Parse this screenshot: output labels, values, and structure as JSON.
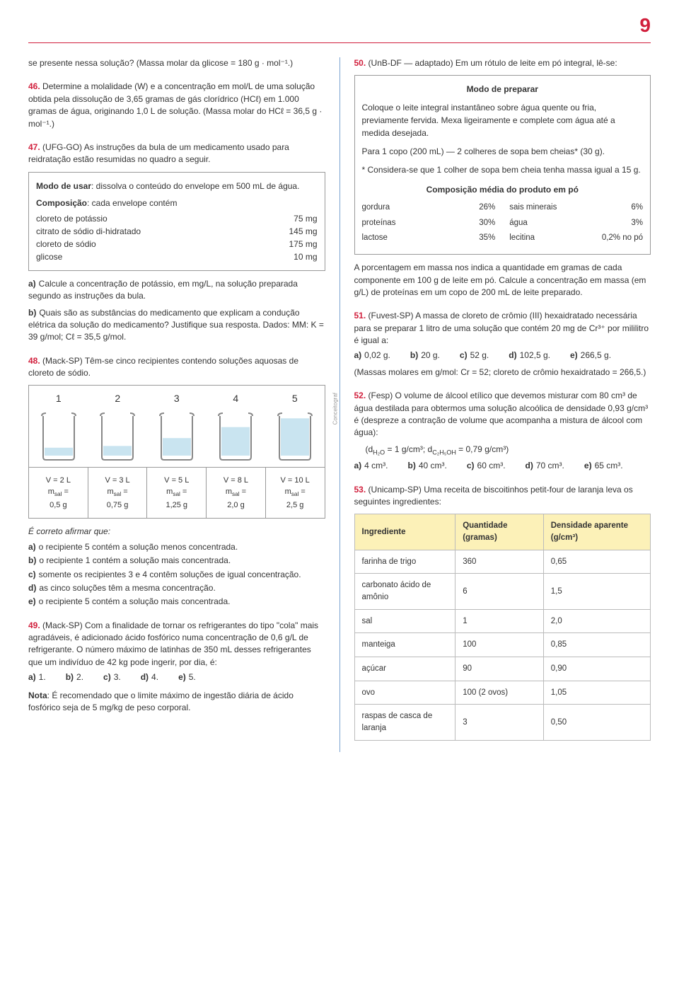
{
  "page_number": "9",
  "left": {
    "q_intro": "se presente nessa solução? (Massa molar da glicose = 180 g · mol⁻¹.)",
    "q46": {
      "num": "46.",
      "text": "Determine a molalidade (W) e a concentração em mol/L de uma solução obtida pela dissolução de 3,65 gramas de gás clorídrico (HCℓ) em 1.000 gramas de água, originando 1,0 L de solução. (Massa molar do HCℓ = 36,5 g · mol⁻¹.)"
    },
    "q47": {
      "num": "47.",
      "text": "(UFG-GO) As instruções da bula de um medicamento usado para reidratação estão resumidas no quadro a seguir.",
      "box_modo_label": "Modo de usar",
      "box_modo": ": dissolva o conteúdo do envelope em 500 mL de água.",
      "box_comp_label": "Composição",
      "box_comp": ": cada envelope contém",
      "rows": [
        {
          "n": "cloreto de potássio",
          "v": "75 mg"
        },
        {
          "n": "citrato de sódio di-hidratado",
          "v": "145 mg"
        },
        {
          "n": "cloreto de sódio",
          "v": "175 mg"
        },
        {
          "n": "glicose",
          "v": "10 mg"
        }
      ],
      "a_label": "a)",
      "a": "Calcule a concentração de potássio, em mg/L, na solução preparada segundo as instruções da bula.",
      "b_label": "b)",
      "b": "Quais são as substâncias do medicamento que explicam a condução elétrica da solução do medicamento? Justifique sua resposta. Dados: MM: K = 39 g/mol; Cℓ = 35,5 g/mol."
    },
    "q48": {
      "num": "48.",
      "text": "(Mack-SP) Têm-se cinco recipientes contendo soluções aquosas de cloreto de sódio.",
      "credit": "Conceitograf",
      "nums": [
        "1",
        "2",
        "3",
        "4",
        "5"
      ],
      "beakers": [
        {
          "fill": 0.18,
          "v": "V = 2 L",
          "m": "mₛₐₗ = 0,5 g"
        },
        {
          "fill": 0.22,
          "v": "V = 3 L",
          "m": "mₛₐₗ = 0,75 g"
        },
        {
          "fill": 0.4,
          "v": "V = 5 L",
          "m": "mₛₐₗ = 1,25 g"
        },
        {
          "fill": 0.65,
          "v": "V = 8 L",
          "m": "mₛₐₗ = 2,0 g"
        },
        {
          "fill": 0.85,
          "v": "V = 10 L",
          "m": "mₛₐₗ = 2,5 g"
        }
      ],
      "stem": "É correto afirmar que:",
      "opts": [
        {
          "l": "a)",
          "t": "o recipiente 5 contém a solução menos concentrada."
        },
        {
          "l": "b)",
          "t": "o recipiente 1 contém a solução mais concentrada."
        },
        {
          "l": "c)",
          "t": "somente os recipientes 3 e 4 contêm soluções de igual concentração."
        },
        {
          "l": "d)",
          "t": "as cinco soluções têm a mesma concentração."
        },
        {
          "l": "e)",
          "t": "o recipiente 5 contém a solução mais concentrada."
        }
      ]
    },
    "q49": {
      "num": "49.",
      "text": "(Mack-SP) Com a finalidade de tornar os refrigerantes do tipo \"cola\" mais agradáveis, é adicionado ácido fosfórico numa concentração de 0,6 g/L de refrigerante. O número máximo de latinhas de 350 mL desses refrigerantes que um indivíduo de 42 kg pode ingerir, por dia, é:",
      "opts": [
        {
          "l": "a)",
          "t": "1."
        },
        {
          "l": "b)",
          "t": "2."
        },
        {
          "l": "c)",
          "t": "3."
        },
        {
          "l": "d)",
          "t": "4."
        },
        {
          "l": "e)",
          "t": "5."
        }
      ],
      "note_label": "Nota",
      "note": ": É recomendado que o limite máximo de ingestão diária de ácido fosfórico seja de 5 mg/kg de peso corporal."
    }
  },
  "right": {
    "q50": {
      "num": "50.",
      "text": "(UnB-DF — adaptado) Em um rótulo de leite em pó integral, lê-se:",
      "box_title": "Modo de preparar",
      "box_p1": "Coloque o leite integral instantâneo sobre água quente ou fria, previamente fervida. Mexa ligeiramente e complete com água até a medida desejada.",
      "box_p2": "Para 1 copo (200 mL) — 2 colheres de sopa bem cheias* (30 g).",
      "box_p3": "* Considera-se que 1 colher de sopa bem cheia tenha massa igual a 15 g.",
      "comp_title": "Composição média do produto em pó",
      "comp_left": [
        {
          "n": "gordura",
          "v": "26%"
        },
        {
          "n": "proteínas",
          "v": "30%"
        },
        {
          "n": "lactose",
          "v": "35%"
        }
      ],
      "comp_right": [
        {
          "n": "sais minerais",
          "v": "6%"
        },
        {
          "n": "água",
          "v": "3%"
        },
        {
          "n": "lecitina",
          "v": "0,2% no pó"
        }
      ],
      "tail": "A porcentagem em massa nos indica a quantidade em gramas de cada componente em 100 g de leite em pó. Calcule a concentração em massa (em g/L) de proteínas em um copo de 200 mL de leite preparado."
    },
    "q51": {
      "num": "51.",
      "text": "(Fuvest-SP) A massa de cloreto de crômio (III) hexaidratado necessária para se preparar 1 litro de uma solução que contém 20 mg de Cr³⁺ por mililitro é igual a:",
      "opts": [
        {
          "l": "a)",
          "t": "0,02 g."
        },
        {
          "l": "b)",
          "t": "20 g."
        },
        {
          "l": "c)",
          "t": "52 g."
        },
        {
          "l": "d)",
          "t": "102,5 g."
        },
        {
          "l": "e)",
          "t": "266,5 g."
        }
      ],
      "tail": "(Massas molares em g/mol: Cr = 52; cloreto de crômio hexaidratado = 266,5.)"
    },
    "q52": {
      "num": "52.",
      "text": "(Fesp) O volume de álcool etílico que devemos misturar com 80 cm³ de água destilada para obtermos uma solução alcoólica de densidade 0,93 g/cm³ é (despreze a contração de volume que acompanha a mistura de álcool com água):",
      "dens": "(d_H₂O = 1 g/cm³; d_C₂H₅OH = 0,79 g/cm³)",
      "opts": [
        {
          "l": "a)",
          "t": "4 cm³."
        },
        {
          "l": "b)",
          "t": "40 cm³."
        },
        {
          "l": "c)",
          "t": "60 cm³."
        },
        {
          "l": "d)",
          "t": "70 cm³."
        },
        {
          "l": "e)",
          "t": "65 cm³."
        }
      ]
    },
    "q53": {
      "num": "53.",
      "text": "(Unicamp-SP) Uma receita de biscoitinhos petit-four de laranja leva os seguintes ingredientes:",
      "headers": [
        "Ingrediente",
        "Quantidade (gramas)",
        "Densidade aparente (g/cm³)"
      ],
      "rows": [
        [
          "farinha de trigo",
          "360",
          "0,65"
        ],
        [
          "carbonato ácido de amônio",
          "6",
          "1,5"
        ],
        [
          "sal",
          "1",
          "2,0"
        ],
        [
          "manteiga",
          "100",
          "0,85"
        ],
        [
          "açúcar",
          "90",
          "0,90"
        ],
        [
          "ovo",
          "100 (2 ovos)",
          "1,05"
        ],
        [
          "raspas de casca de laranja",
          "3",
          "0,50"
        ]
      ]
    }
  }
}
